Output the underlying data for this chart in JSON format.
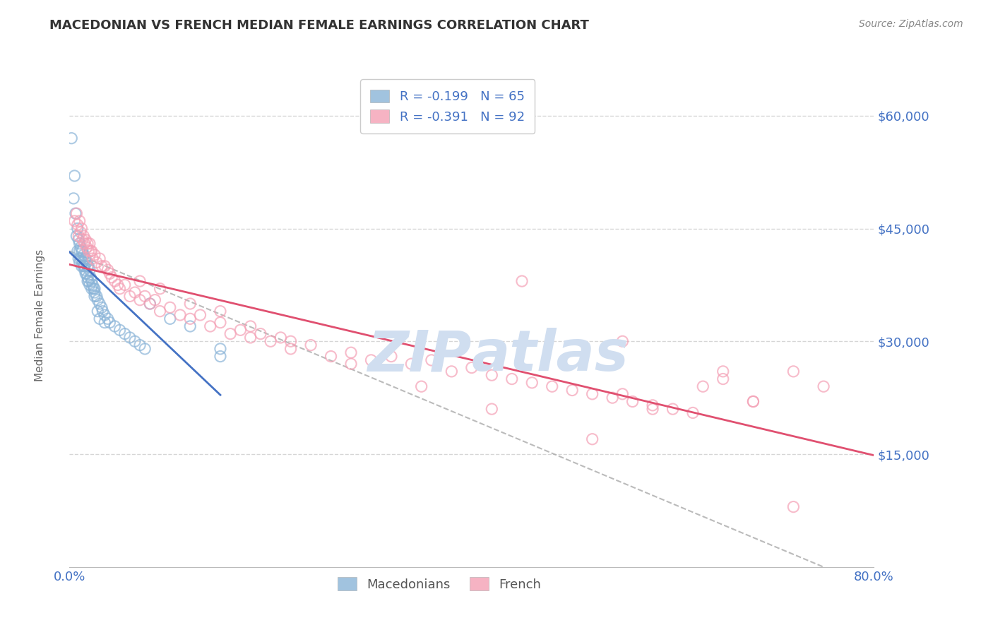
{
  "title": "MACEDONIAN VS FRENCH MEDIAN FEMALE EARNINGS CORRELATION CHART",
  "source_text": "Source: ZipAtlas.com",
  "ylabel": "Median Female Earnings",
  "xlim": [
    0.0,
    0.8
  ],
  "ylim": [
    0,
    67000
  ],
  "yticks": [
    15000,
    30000,
    45000,
    60000
  ],
  "ytick_labels": [
    "$15,000",
    "$30,000",
    "$45,000",
    "$60,000"
  ],
  "xtick_labels": [
    "0.0%",
    "80.0%"
  ],
  "legend_r1": "R = -0.199",
  "legend_n1": "N = 65",
  "legend_r2": "R = -0.391",
  "legend_n2": "N = 92",
  "blue_color": "#8AB4D8",
  "pink_color": "#F4A0B5",
  "trend_blue": "#4472C4",
  "trend_pink": "#E05070",
  "title_color": "#333333",
  "axis_label_color": "#4472C4",
  "ylabel_color": "#666666",
  "watermark_color": "#D0DEF0",
  "background_color": "#FFFFFF",
  "grid_color": "#CCCCCC",
  "mac_x": [
    0.002,
    0.004,
    0.005,
    0.006,
    0.007,
    0.008,
    0.008,
    0.009,
    0.009,
    0.01,
    0.01,
    0.01,
    0.011,
    0.011,
    0.012,
    0.012,
    0.013,
    0.013,
    0.014,
    0.014,
    0.015,
    0.015,
    0.015,
    0.016,
    0.016,
    0.017,
    0.017,
    0.018,
    0.018,
    0.019,
    0.019,
    0.02,
    0.02,
    0.021,
    0.022,
    0.023,
    0.024,
    0.025,
    0.025,
    0.027,
    0.028,
    0.03,
    0.032,
    0.033,
    0.035,
    0.038,
    0.04,
    0.045,
    0.05,
    0.055,
    0.06,
    0.065,
    0.07,
    0.075,
    0.08,
    0.1,
    0.12,
    0.15,
    0.018,
    0.022,
    0.025,
    0.028,
    0.03,
    0.035,
    0.15
  ],
  "mac_y": [
    57000,
    49000,
    52000,
    47000,
    44000,
    45000,
    42000,
    43500,
    41000,
    43000,
    42000,
    40500,
    42500,
    41000,
    42000,
    40000,
    42000,
    40500,
    41500,
    40000,
    41000,
    40000,
    39500,
    41000,
    39000,
    40500,
    39000,
    40000,
    38500,
    40000,
    38000,
    39500,
    37500,
    38500,
    38000,
    37500,
    37000,
    37000,
    36500,
    36000,
    35500,
    35000,
    34500,
    34000,
    33500,
    33000,
    32500,
    32000,
    31500,
    31000,
    30500,
    30000,
    29500,
    29000,
    35000,
    33000,
    32000,
    29000,
    38000,
    37000,
    36000,
    34000,
    33000,
    32500,
    28000
  ],
  "fr_x": [
    0.005,
    0.007,
    0.008,
    0.009,
    0.01,
    0.011,
    0.012,
    0.013,
    0.014,
    0.015,
    0.016,
    0.017,
    0.018,
    0.019,
    0.02,
    0.021,
    0.022,
    0.023,
    0.025,
    0.027,
    0.03,
    0.032,
    0.035,
    0.038,
    0.04,
    0.042,
    0.045,
    0.048,
    0.05,
    0.055,
    0.06,
    0.065,
    0.07,
    0.075,
    0.08,
    0.085,
    0.09,
    0.1,
    0.11,
    0.12,
    0.13,
    0.14,
    0.15,
    0.16,
    0.17,
    0.18,
    0.19,
    0.2,
    0.21,
    0.22,
    0.24,
    0.26,
    0.28,
    0.3,
    0.32,
    0.34,
    0.36,
    0.38,
    0.4,
    0.42,
    0.44,
    0.46,
    0.48,
    0.5,
    0.52,
    0.54,
    0.56,
    0.58,
    0.6,
    0.62,
    0.07,
    0.09,
    0.12,
    0.15,
    0.18,
    0.22,
    0.28,
    0.35,
    0.42,
    0.55,
    0.65,
    0.68,
    0.52,
    0.58,
    0.63,
    0.68,
    0.72,
    0.75,
    0.45,
    0.55,
    0.65,
    0.72
  ],
  "fr_y": [
    46000,
    47000,
    45500,
    44000,
    46000,
    44500,
    45000,
    43500,
    44000,
    43000,
    43500,
    42500,
    43000,
    42000,
    43000,
    42000,
    42000,
    41000,
    41500,
    40500,
    41000,
    40000,
    40000,
    39500,
    39000,
    38500,
    38000,
    37500,
    37000,
    37500,
    36000,
    36500,
    35500,
    36000,
    35000,
    35500,
    34000,
    34500,
    33500,
    33000,
    33500,
    32000,
    32500,
    31000,
    31500,
    30500,
    31000,
    30000,
    30500,
    29000,
    29500,
    28000,
    28500,
    27500,
    28000,
    27000,
    27500,
    26000,
    26500,
    25500,
    25000,
    24500,
    24000,
    23500,
    23000,
    22500,
    22000,
    21500,
    21000,
    20500,
    38000,
    37000,
    35000,
    34000,
    32000,
    30000,
    27000,
    24000,
    21000,
    23000,
    25000,
    22000,
    17000,
    21000,
    24000,
    22000,
    26000,
    24000,
    38000,
    30000,
    26000,
    8000
  ]
}
